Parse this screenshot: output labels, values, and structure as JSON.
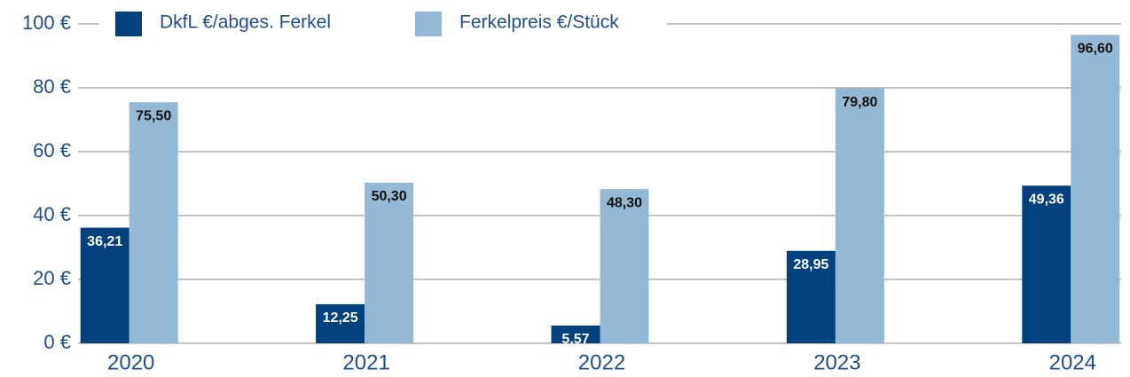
{
  "chart_data": {
    "type": "bar",
    "categories": [
      "2020",
      "2021",
      "2022",
      "2023",
      "2024"
    ],
    "series": [
      {
        "name": "DkfL €/abges. Ferkel",
        "color": "#00417e",
        "values": [
          36.21,
          12.25,
          5.57,
          28.95,
          49.36
        ],
        "value_labels": [
          "36,21",
          "12,25",
          "5,57",
          "28,95",
          "49,36"
        ]
      },
      {
        "name": "Ferkelpreis €/Stück",
        "color": "#94b9d7",
        "values": [
          75.5,
          50.3,
          48.3,
          79.8,
          96.6
        ],
        "value_labels": [
          "75,50",
          "50,30",
          "48,30",
          "79,80",
          "96,60"
        ]
      }
    ],
    "ylim": [
      0,
      100
    ],
    "yticks": [
      {
        "value": 0,
        "label": "0 €"
      },
      {
        "value": 20,
        "label": "20 €"
      },
      {
        "value": 40,
        "label": "40 €"
      },
      {
        "value": 60,
        "label": "60 €"
      },
      {
        "value": 80,
        "label": "80 €"
      },
      {
        "value": 100,
        "label": "100 €"
      }
    ],
    "grid": true,
    "legend": "top"
  }
}
